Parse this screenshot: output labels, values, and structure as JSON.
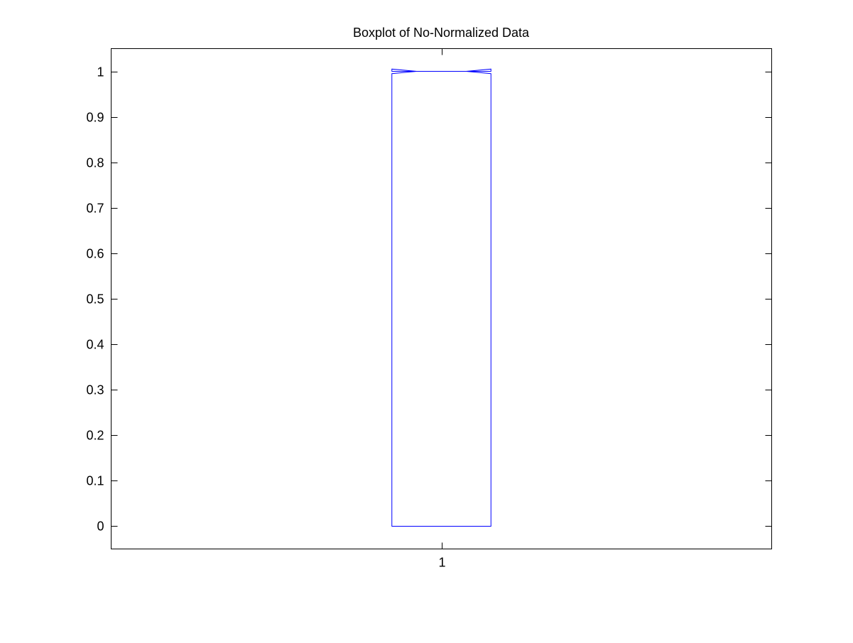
{
  "chart_data": {
    "type": "box",
    "title": "Boxplot of No-Normalized Data",
    "xlabel": "",
    "ylabel": "",
    "categories": [
      "1"
    ],
    "xlim": [
      0.5,
      1.5
    ],
    "ylim": [
      -0.05,
      1.05
    ],
    "yticks": [
      0,
      0.1,
      0.2,
      0.3,
      0.4,
      0.5,
      0.6,
      0.7,
      0.8,
      0.9,
      1
    ],
    "ytick_labels": [
      "0",
      "0.1",
      "0.2",
      "0.3",
      "0.4",
      "0.5",
      "0.6",
      "0.7",
      "0.8",
      "0.9",
      "1"
    ],
    "xticks": [
      1
    ],
    "xtick_labels": [
      "1"
    ],
    "grid": false,
    "boxes": [
      {
        "category": "1",
        "q1": 0,
        "median": 1,
        "q3": 1,
        "whisker_low": 0,
        "whisker_high": 1,
        "notch_low": 0.995,
        "notch_high": 1.005,
        "outliers": []
      }
    ],
    "colors": {
      "box": "#0000ff",
      "median": "#ff0000",
      "axes": "#000000"
    }
  }
}
